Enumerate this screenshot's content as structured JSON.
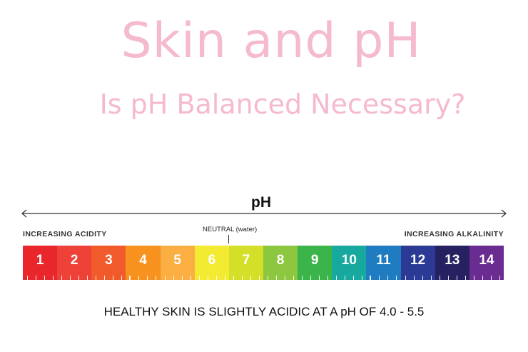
{
  "title": "Skin and pH",
  "subtitle": "Is pH Balanced Necessary?",
  "scale": {
    "axis_label": "pH",
    "left_label": "INCREASING ACIDITY",
    "right_label": "INCREASING ALKALINITY",
    "neutral_label": "NEUTRAL (water)",
    "cells": [
      {
        "label": "1",
        "color": "#e8262b"
      },
      {
        "label": "2",
        "color": "#ee4138"
      },
      {
        "label": "3",
        "color": "#f15a2b"
      },
      {
        "label": "4",
        "color": "#f7921e"
      },
      {
        "label": "5",
        "color": "#fbae42"
      },
      {
        "label": "6",
        "color": "#f3ea32"
      },
      {
        "label": "7",
        "color": "#d4df2a"
      },
      {
        "label": "8",
        "color": "#8dc63f"
      },
      {
        "label": "9",
        "color": "#3bb54a"
      },
      {
        "label": "10",
        "color": "#17a89e"
      },
      {
        "label": "11",
        "color": "#1f7cc1"
      },
      {
        "label": "12",
        "color": "#2b3a94"
      },
      {
        "label": "13",
        "color": "#262262"
      },
      {
        "label": "14",
        "color": "#6a2c91"
      }
    ]
  },
  "footer": "HEALTHY SKIN IS SLIGHTLY ACIDIC AT A pH OF 4.0 - 5.5"
}
